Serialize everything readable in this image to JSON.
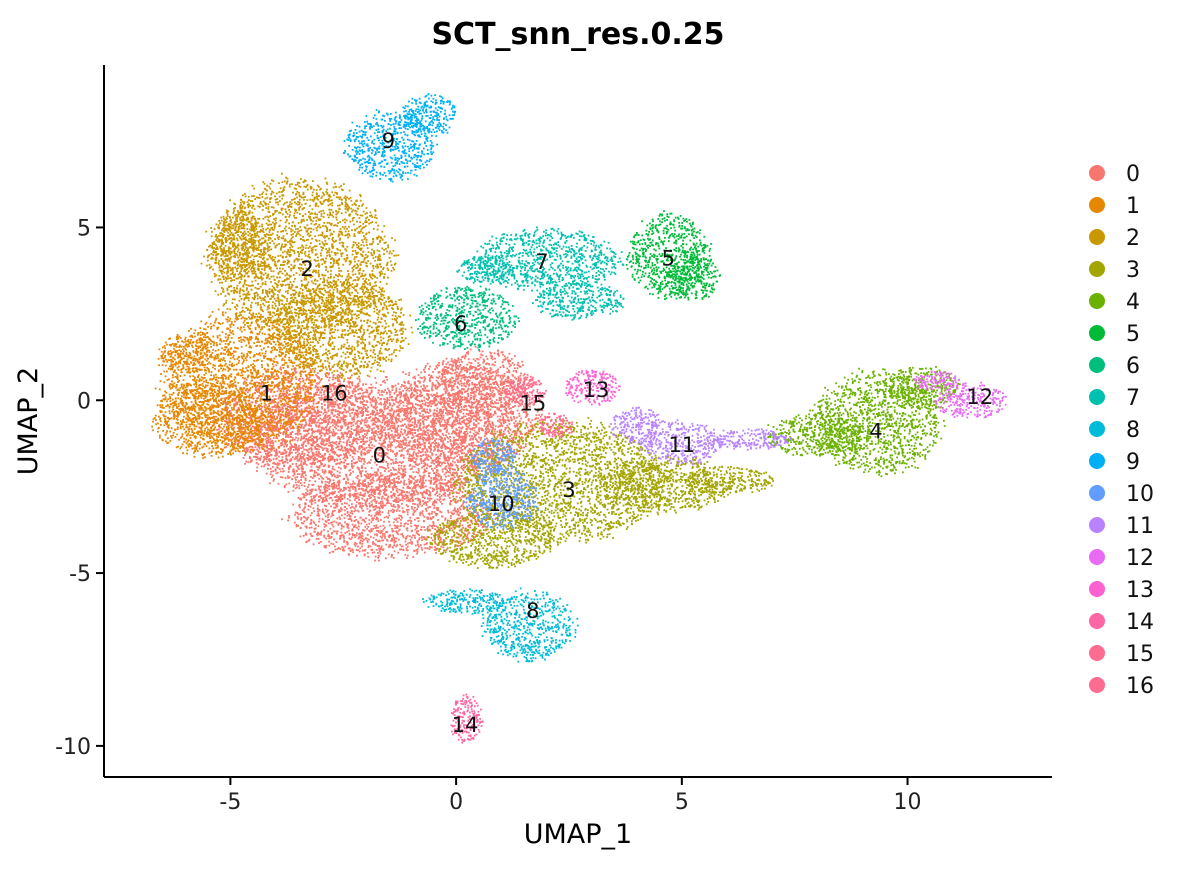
{
  "chart_data": {
    "type": "scatter",
    "title": "SCT_snn_res.0.25",
    "xlabel": "UMAP_1",
    "ylabel": "UMAP_2",
    "xlim": [
      -7.8,
      13.2
    ],
    "ylim": [
      -10.9,
      9.7
    ],
    "xticks": [
      -5,
      0,
      5,
      10
    ],
    "yticks": [
      -10,
      -5,
      0,
      5
    ],
    "xtick_labels": [
      "-5",
      "0",
      "5",
      "10"
    ],
    "ytick_labels": [
      "-10",
      "-5",
      "0",
      "5"
    ],
    "grid": false,
    "legend": "right",
    "clusters": [
      {
        "name": "0",
        "color": "#F8766D",
        "center": [
          -1.7,
          -1.6
        ]
      },
      {
        "name": "1",
        "color": "#E58700",
        "center": [
          -4.2,
          0.2
        ]
      },
      {
        "name": "2",
        "color": "#C99800",
        "center": [
          -3.3,
          3.8
        ]
      },
      {
        "name": "3",
        "color": "#A3A500",
        "center": [
          2.5,
          -2.6
        ]
      },
      {
        "name": "4",
        "color": "#6BB100",
        "center": [
          9.3,
          -0.9
        ]
      },
      {
        "name": "5",
        "color": "#00BA38",
        "center": [
          4.7,
          4.1
        ]
      },
      {
        "name": "6",
        "color": "#00BF7D",
        "center": [
          0.1,
          2.2
        ]
      },
      {
        "name": "7",
        "color": "#00C0AF",
        "center": [
          1.9,
          4.0
        ]
      },
      {
        "name": "8",
        "color": "#00BCD8",
        "center": [
          1.7,
          -6.1
        ]
      },
      {
        "name": "9",
        "color": "#00B0F6",
        "center": [
          -1.5,
          7.5
        ]
      },
      {
        "name": "10",
        "color": "#619CFF",
        "center": [
          1.0,
          -3.0
        ]
      },
      {
        "name": "11",
        "color": "#B983FF",
        "center": [
          5.0,
          -1.3
        ]
      },
      {
        "name": "12",
        "color": "#E76BF3",
        "center": [
          11.6,
          0.1
        ]
      },
      {
        "name": "13",
        "color": "#FD61D1",
        "center": [
          3.1,
          0.3
        ]
      },
      {
        "name": "14",
        "color": "#FF67A4",
        "center": [
          0.2,
          -9.4
        ]
      },
      {
        "name": "15",
        "color": "#FF6C91",
        "center": [
          1.7,
          -0.1
        ]
      },
      {
        "name": "16",
        "color": "#FF6C91",
        "center": [
          -2.7,
          0.2
        ]
      }
    ],
    "series_colors": [
      "#F8766D",
      "#E58700",
      "#C99800",
      "#A3A500",
      "#6BB100",
      "#00BA38",
      "#00BF7D",
      "#00C0AF",
      "#00BCD8",
      "#00B0F6",
      "#619CFF",
      "#B983FF",
      "#E76BF3",
      "#FD61D1",
      "#FF67A4",
      "#FF6C91"
    ]
  }
}
